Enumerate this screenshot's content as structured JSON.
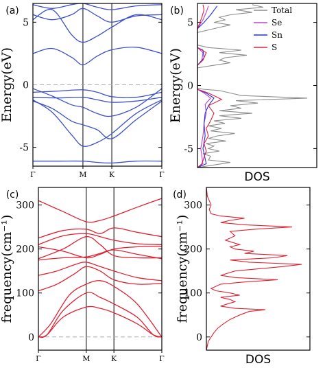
{
  "chart_data": [
    {
      "panel": "(a)",
      "type": "line",
      "xlabel": "",
      "ylabel": "Energy(eV)",
      "x_ticks": [
        "Γ",
        "M",
        "K",
        "Γ"
      ],
      "x_positions": [
        0,
        0.388,
        0.612,
        1
      ],
      "ylim": [
        -6.5,
        6.5
      ],
      "yticks": [
        -5,
        0,
        5
      ],
      "fermi_level": 0,
      "grid": false,
      "color": "#3b4fc9",
      "series": [
        {
          "x": [
            0,
            0.2,
            0.388,
            0.5,
            0.612,
            0.8,
            1
          ],
          "values": [
            -6.1,
            -6.1,
            -6.1,
            -6.2,
            -6.25,
            -6.1,
            -6.1
          ]
        },
        {
          "x": [
            0,
            0.15,
            0.3,
            0.388,
            0.5,
            0.612,
            0.8,
            1
          ],
          "values": [
            -1.2,
            -2.2,
            -4.0,
            -4.9,
            -4.6,
            -3.9,
            -2.3,
            -1.2
          ]
        },
        {
          "x": [
            0,
            0.15,
            0.3,
            0.388,
            0.5,
            0.612,
            0.8,
            1
          ],
          "values": [
            -1.3,
            -1.9,
            -2.9,
            -3.2,
            -3.6,
            -4.3,
            -2.8,
            -1.3
          ]
        },
        {
          "x": [
            0,
            0.15,
            0.3,
            0.388,
            0.5,
            0.612,
            0.8,
            1
          ],
          "values": [
            -0.3,
            -0.9,
            -1.6,
            -1.8,
            -2.3,
            -2.5,
            -1.8,
            -0.3
          ]
        },
        {
          "x": [
            0,
            0.2,
            0.388,
            0.5,
            0.612,
            0.8,
            1
          ],
          "values": [
            -0.6,
            -0.5,
            -0.4,
            -0.6,
            -0.95,
            -1.0,
            -0.6
          ]
        },
        {
          "x": [
            0,
            0.2,
            0.388,
            0.5,
            0.612,
            0.8,
            1
          ],
          "values": [
            -1.0,
            -1.05,
            -1.0,
            -1.2,
            -1.4,
            -1.3,
            -1.0
          ]
        },
        {
          "x": [
            0,
            0.15,
            0.3,
            0.388,
            0.5,
            0.612,
            0.8,
            1
          ],
          "values": [
            2.5,
            2.9,
            2.2,
            1.6,
            2.3,
            2.8,
            3.0,
            2.5
          ]
        },
        {
          "x": [
            0,
            0.15,
            0.3,
            0.388,
            0.5,
            0.612,
            0.8,
            1
          ],
          "values": [
            5.2,
            6.0,
            4.0,
            3.4,
            3.9,
            4.6,
            5.6,
            5.2
          ]
        },
        {
          "x": [
            0,
            0.15,
            0.3,
            0.388,
            0.5,
            0.612,
            0.8,
            1
          ],
          "values": [
            5.6,
            5.2,
            5.6,
            6.1,
            5.5,
            5.0,
            5.5,
            5.6
          ]
        },
        {
          "x": [
            0,
            0.15,
            0.3,
            0.388,
            0.5,
            0.612,
            0.8,
            1
          ],
          "values": [
            6.4,
            6.1,
            6.4,
            6.5,
            6.2,
            6.0,
            6.3,
            6.4
          ]
        }
      ]
    },
    {
      "panel": "(b)",
      "type": "line",
      "xlabel": "DOS",
      "ylabel": "Energy(eV)",
      "ylim": [
        -6.5,
        6.5
      ],
      "yticks": [
        -5,
        0,
        5
      ],
      "legend_position": "top-right",
      "grid": false,
      "series": [
        {
          "name": "Total",
          "color": "#8c8c8c",
          "values": [
            [
              -6.5,
              0
            ],
            [
              -6.3,
              0.15
            ],
            [
              -6.1,
              0.3
            ],
            [
              -5.9,
              0.1
            ],
            [
              -5.6,
              0.12
            ],
            [
              -5.4,
              0.05
            ],
            [
              -5.2,
              0.2
            ],
            [
              -5.0,
              0.1
            ],
            [
              -4.8,
              0.15
            ],
            [
              -4.6,
              0.08
            ],
            [
              -4.4,
              0.26
            ],
            [
              -4.2,
              0.1
            ],
            [
              -4.0,
              0.18
            ],
            [
              -3.8,
              0.34
            ],
            [
              -3.6,
              0.12
            ],
            [
              -3.4,
              0.22
            ],
            [
              -3.2,
              0.1
            ],
            [
              -3.0,
              0.25
            ],
            [
              -2.8,
              0.15
            ],
            [
              -2.6,
              0.4
            ],
            [
              -2.4,
              0.2
            ],
            [
              -2.2,
              0.5
            ],
            [
              -2.0,
              0.2
            ],
            [
              -1.8,
              0.4
            ],
            [
              -1.6,
              0.3
            ],
            [
              -1.4,
              0.55
            ],
            [
              -1.2,
              0.35
            ],
            [
              -1.0,
              1.0
            ],
            [
              -0.8,
              0.4
            ],
            [
              -0.6,
              0.3
            ],
            [
              -0.4,
              0.2
            ],
            [
              -0.3,
              0.05
            ],
            [
              -0.2,
              0
            ],
            [
              1.4,
              0
            ],
            [
              1.6,
              0.15
            ],
            [
              1.8,
              0.3
            ],
            [
              2.0,
              0.2
            ],
            [
              2.2,
              0.25
            ],
            [
              2.4,
              0.45
            ],
            [
              2.6,
              0.2
            ],
            [
              2.8,
              0.4
            ],
            [
              3.0,
              0.1
            ],
            [
              3.2,
              0
            ],
            [
              4.2,
              0
            ],
            [
              4.4,
              0.1
            ],
            [
              4.6,
              0.2
            ],
            [
              4.8,
              0.3
            ],
            [
              5.0,
              0.15
            ],
            [
              5.2,
              0.25
            ],
            [
              5.4,
              0.2
            ],
            [
              5.6,
              0.3
            ],
            [
              5.8,
              0.5
            ],
            [
              6.0,
              0.35
            ],
            [
              6.2,
              0.6
            ],
            [
              6.4,
              0.5
            ]
          ]
        },
        {
          "name": "Se",
          "color": "#c040d0",
          "values": [
            [
              -6.5,
              0
            ],
            [
              -6.2,
              0.05
            ],
            [
              -5.0,
              0.03
            ],
            [
              -4.0,
              0.05
            ],
            [
              -3.0,
              0.06
            ],
            [
              -2.2,
              0.08
            ],
            [
              -1.5,
              0.07
            ],
            [
              -1.0,
              0.12
            ],
            [
              -0.6,
              0.06
            ],
            [
              -0.3,
              0
            ],
            [
              1.6,
              0
            ],
            [
              2.0,
              0.04
            ],
            [
              2.6,
              0.05
            ],
            [
              3.0,
              0
            ],
            [
              4.5,
              0
            ],
            [
              5.2,
              0.05
            ],
            [
              5.8,
              0.08
            ],
            [
              6.3,
              0.1
            ]
          ]
        },
        {
          "name": "Sn",
          "color": "#2030e0",
          "values": [
            [
              -6.5,
              0
            ],
            [
              -6.2,
              0.08
            ],
            [
              -5.0,
              0.05
            ],
            [
              -4.0,
              0.07
            ],
            [
              -3.0,
              0.06
            ],
            [
              -2.2,
              0.07
            ],
            [
              -1.6,
              0.1
            ],
            [
              -1.0,
              0.15
            ],
            [
              -0.6,
              0.08
            ],
            [
              -0.3,
              0
            ],
            [
              1.6,
              0
            ],
            [
              2.2,
              0.06
            ],
            [
              2.8,
              0.05
            ],
            [
              3.0,
              0
            ],
            [
              4.5,
              0
            ],
            [
              5.0,
              0.06
            ],
            [
              5.6,
              0.12
            ],
            [
              6.3,
              0.18
            ]
          ]
        },
        {
          "name": "S",
          "color": "#e02040",
          "values": [
            [
              -6.5,
              0
            ],
            [
              -6.2,
              0.04
            ],
            [
              -5.2,
              0.08
            ],
            [
              -4.6,
              0.06
            ],
            [
              -4.0,
              0.1
            ],
            [
              -3.4,
              0.08
            ],
            [
              -2.8,
              0.12
            ],
            [
              -2.2,
              0.15
            ],
            [
              -1.6,
              0.1
            ],
            [
              -1.1,
              0.22
            ],
            [
              -0.6,
              0.1
            ],
            [
              -0.3,
              0
            ],
            [
              1.6,
              0
            ],
            [
              2.0,
              0.05
            ],
            [
              2.6,
              0.08
            ],
            [
              3.0,
              0
            ],
            [
              4.5,
              0
            ],
            [
              5.4,
              0.04
            ],
            [
              6.0,
              0.06
            ],
            [
              6.4,
              0.05
            ]
          ]
        }
      ]
    },
    {
      "panel": "(c)",
      "type": "line",
      "xlabel": "",
      "ylabel": "frequency(cm⁻¹)",
      "x_ticks": [
        "Γ",
        "M",
        "K",
        "Γ"
      ],
      "x_positions": [
        0,
        0.388,
        0.612,
        1
      ],
      "ylim": [
        -30,
        340
      ],
      "yticks": [
        0,
        100,
        200,
        300
      ],
      "zero_line": 0,
      "grid": false,
      "color": "#e02030",
      "series": [
        {
          "x": [
            0,
            0.07,
            0.2,
            0.388,
            0.5,
            0.612,
            0.8,
            0.93,
            1
          ],
          "values": [
            0,
            5,
            60,
            100,
            90,
            75,
            45,
            5,
            0
          ]
        },
        {
          "x": [
            0,
            0.07,
            0.2,
            0.388,
            0.5,
            0.612,
            0.8,
            0.93,
            1
          ],
          "values": [
            0,
            5,
            45,
            68,
            65,
            55,
            30,
            5,
            0
          ]
        },
        {
          "x": [
            0,
            0.1,
            0.25,
            0.388,
            0.5,
            0.612,
            0.8,
            1
          ],
          "values": [
            0,
            30,
            95,
            120,
            128,
            115,
            75,
            0
          ]
        },
        {
          "x": [
            0,
            0.15,
            0.3,
            0.388,
            0.5,
            0.612,
            0.8,
            1
          ],
          "values": [
            105,
            120,
            145,
            160,
            150,
            130,
            120,
            122
          ]
        },
        {
          "x": [
            0,
            0.15,
            0.3,
            0.388,
            0.5,
            0.612,
            0.8,
            1
          ],
          "values": [
            140,
            150,
            165,
            170,
            160,
            150,
            135,
            128
          ]
        },
        {
          "x": [
            0,
            0.2,
            0.388,
            0.5,
            0.612,
            0.8,
            1
          ],
          "values": [
            175,
            180,
            182,
            190,
            198,
            188,
            178
          ]
        },
        {
          "x": [
            0,
            0.2,
            0.388,
            0.5,
            0.612,
            0.8,
            1
          ],
          "values": [
            178,
            200,
            228,
            210,
            185,
            180,
            180
          ]
        },
        {
          "x": [
            0,
            0.2,
            0.388,
            0.5,
            0.612,
            0.8,
            1
          ],
          "values": [
            205,
            195,
            180,
            188,
            200,
            205,
            206
          ]
        },
        {
          "x": [
            0,
            0.2,
            0.388,
            0.5,
            0.612,
            0.8,
            1
          ],
          "values": [
            210,
            230,
            235,
            228,
            220,
            212,
            210
          ]
        },
        {
          "x": [
            0,
            0.2,
            0.388,
            0.5,
            0.612,
            0.8,
            1
          ],
          "values": [
            225,
            242,
            245,
            235,
            248,
            238,
            228
          ]
        },
        {
          "x": [
            0,
            0.2,
            0.388,
            0.5,
            0.612,
            0.8,
            1
          ],
          "values": [
            310,
            285,
            262,
            265,
            275,
            295,
            315
          ]
        }
      ]
    },
    {
      "panel": "(d)",
      "type": "line",
      "xlabel": "DOS",
      "ylabel": "frequency(cm⁻¹)",
      "ylim": [
        -30,
        340
      ],
      "yticks": [
        0,
        100,
        200,
        300
      ],
      "grid": false,
      "color": "#e02030",
      "values": [
        [
          -30,
          0
        ],
        [
          -10,
          0.02
        ],
        [
          0,
          0.05
        ],
        [
          10,
          0.08
        ],
        [
          20,
          0.12
        ],
        [
          30,
          0.18
        ],
        [
          40,
          0.25
        ],
        [
          50,
          0.35
        ],
        [
          58,
          0.45
        ],
        [
          62,
          0.62
        ],
        [
          65,
          0.3
        ],
        [
          70,
          0.15
        ],
        [
          75,
          0.22
        ],
        [
          80,
          0.3
        ],
        [
          85,
          0.25
        ],
        [
          90,
          0.15
        ],
        [
          95,
          0.35
        ],
        [
          100,
          0.25
        ],
        [
          105,
          0.1
        ],
        [
          110,
          0.05
        ],
        [
          120,
          0.15
        ],
        [
          125,
          0.4
        ],
        [
          130,
          0.75
        ],
        [
          135,
          0.3
        ],
        [
          140,
          0.15
        ],
        [
          150,
          0.3
        ],
        [
          160,
          0.8
        ],
        [
          165,
          1.0
        ],
        [
          170,
          0.45
        ],
        [
          175,
          0.25
        ],
        [
          180,
          0.7
        ],
        [
          185,
          0.85
        ],
        [
          190,
          0.4
        ],
        [
          195,
          0.5
        ],
        [
          200,
          0.3
        ],
        [
          205,
          0.25
        ],
        [
          210,
          0.35
        ],
        [
          220,
          0.2
        ],
        [
          230,
          0.3
        ],
        [
          240,
          0.25
        ],
        [
          245,
          0.5
        ],
        [
          250,
          0.9
        ],
        [
          255,
          0.4
        ],
        [
          260,
          0.15
        ],
        [
          265,
          0.25
        ],
        [
          270,
          0.4
        ],
        [
          275,
          0.15
        ],
        [
          280,
          0.05
        ],
        [
          290,
          0.03
        ],
        [
          300,
          0.05
        ],
        [
          310,
          0.03
        ],
        [
          320,
          0.01
        ],
        [
          340,
          0
        ]
      ]
    }
  ]
}
